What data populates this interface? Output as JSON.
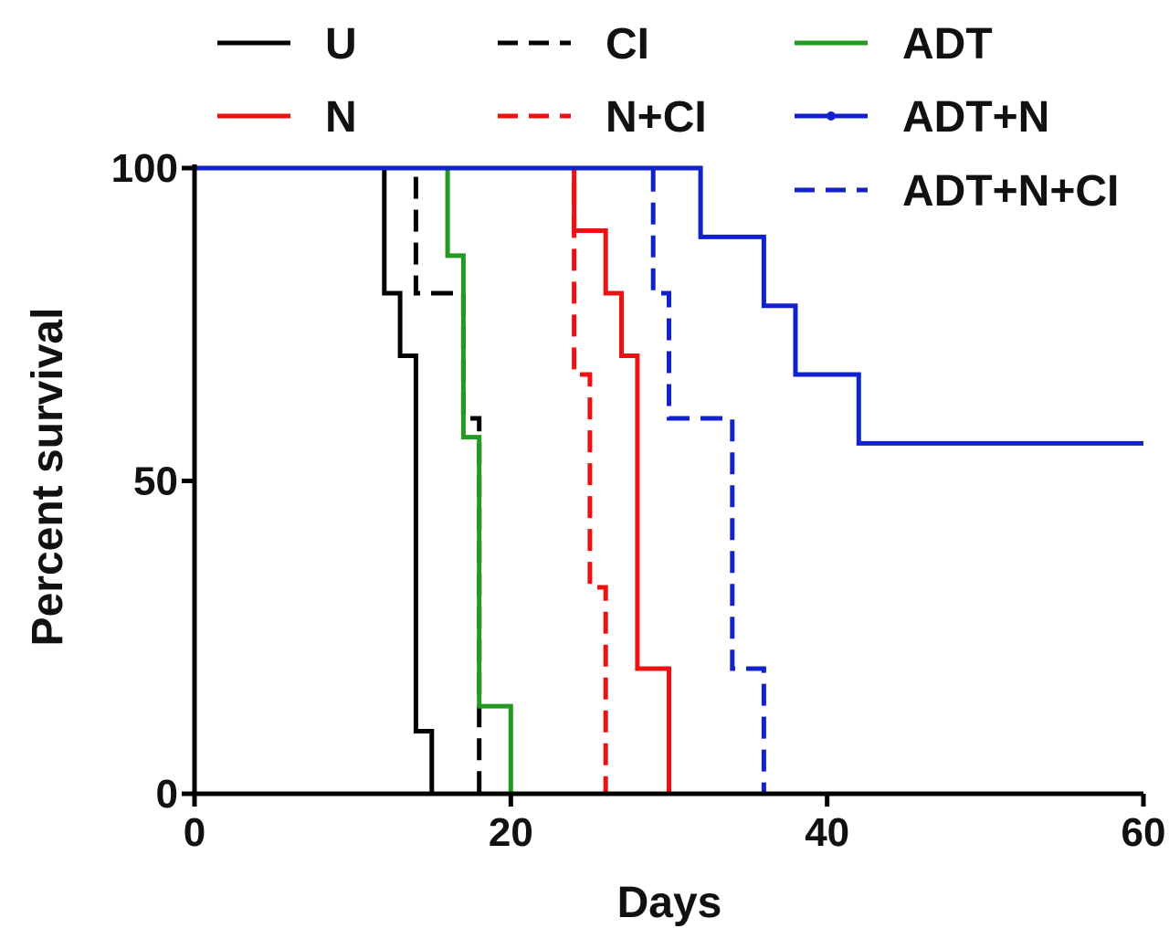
{
  "chart_data": {
    "type": "line",
    "subtype": "kaplan-meier step survival curves",
    "title": "",
    "xlabel": "Days",
    "ylabel": "Percent survival",
    "xlim": [
      0,
      60
    ],
    "ylim": [
      0,
      100
    ],
    "x_ticks": [
      "0",
      "20",
      "40",
      "60"
    ],
    "y_ticks": [
      "0",
      "50",
      "100"
    ],
    "grid": false,
    "legend_position": "top",
    "series": [
      {
        "name": "U",
        "color": "#000000",
        "dash": "solid",
        "points": [
          [
            0,
            100
          ],
          [
            12,
            100
          ],
          [
            12,
            80
          ],
          [
            13,
            80
          ],
          [
            13,
            70
          ],
          [
            14,
            70
          ],
          [
            14,
            10
          ],
          [
            15,
            10
          ],
          [
            15,
            0
          ]
        ]
      },
      {
        "name": "N",
        "color": "#ee1111",
        "dash": "solid",
        "points": [
          [
            0,
            100
          ],
          [
            24,
            100
          ],
          [
            24,
            90
          ],
          [
            26,
            90
          ],
          [
            26,
            80
          ],
          [
            27,
            80
          ],
          [
            27,
            70
          ],
          [
            28,
            70
          ],
          [
            28,
            20
          ],
          [
            30,
            20
          ],
          [
            30,
            0
          ]
        ]
      },
      {
        "name": "CI",
        "color": "#000000",
        "dash": "dashed",
        "points": [
          [
            0,
            100
          ],
          [
            14,
            100
          ],
          [
            14,
            80
          ],
          [
            17,
            80
          ],
          [
            17,
            60
          ],
          [
            18,
            60
          ],
          [
            18,
            0
          ]
        ]
      },
      {
        "name": "N+CI",
        "color": "#ee1111",
        "dash": "dashed",
        "points": [
          [
            0,
            100
          ],
          [
            24,
            100
          ],
          [
            24,
            67
          ],
          [
            25,
            67
          ],
          [
            25,
            33
          ],
          [
            26,
            33
          ],
          [
            26,
            0
          ]
        ]
      },
      {
        "name": "ADT",
        "color": "#229922",
        "dash": "solid",
        "points": [
          [
            0,
            100
          ],
          [
            16,
            100
          ],
          [
            16,
            86
          ],
          [
            17,
            86
          ],
          [
            17,
            57
          ],
          [
            18,
            57
          ],
          [
            18,
            14
          ],
          [
            20,
            14
          ],
          [
            20,
            0
          ]
        ]
      },
      {
        "name": "ADT+N",
        "color": "#1122cc",
        "dash": "solid",
        "points": [
          [
            0,
            100
          ],
          [
            32,
            100
          ],
          [
            32,
            89
          ],
          [
            36,
            89
          ],
          [
            36,
            78
          ],
          [
            38,
            78
          ],
          [
            38,
            67
          ],
          [
            42,
            67
          ],
          [
            42,
            56
          ],
          [
            60,
            56
          ]
        ]
      },
      {
        "name": "ADT+N+CI",
        "color": "#1122cc",
        "dash": "dashed",
        "points": [
          [
            0,
            100
          ],
          [
            29,
            100
          ],
          [
            29,
            80
          ],
          [
            30,
            80
          ],
          [
            30,
            60
          ],
          [
            34,
            60
          ],
          [
            34,
            20
          ],
          [
            36,
            20
          ],
          [
            36,
            0
          ]
        ]
      }
    ]
  }
}
